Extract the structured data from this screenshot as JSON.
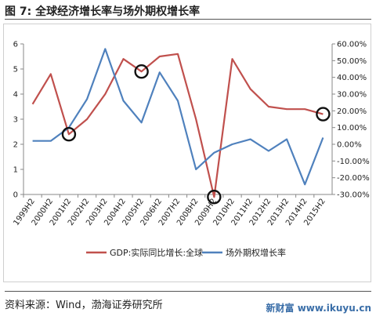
{
  "figure": {
    "title": "图 7:  全球经济增长率与场外期权增长率",
    "source": "资料来源：Wind，渤海证券研究所",
    "watermark": "新财富 www.ikuyu.cn"
  },
  "chart_data": {
    "type": "line",
    "categories": [
      "1999H2",
      "2000H2",
      "2001H2",
      "2002H2",
      "2003H2",
      "2004H2",
      "2005H2",
      "2006H2",
      "2007H2",
      "2008H2",
      "2009H2",
      "2010H2",
      "2011H2",
      "2012H2",
      "2013H2",
      "2014H2",
      "2015H2"
    ],
    "left_axis": {
      "ylim": [
        0,
        6
      ],
      "ticks": [
        "0",
        "1",
        "2",
        "3",
        "4",
        "5",
        "6"
      ]
    },
    "right_axis": {
      "ylim": [
        -0.3,
        0.6
      ],
      "ticks": [
        "-30.00%",
        "-20.00%",
        "-10.00%",
        "0.00%",
        "10.00%",
        "20.00%",
        "30.00%",
        "40.00%",
        "50.00%",
        "60.00%"
      ]
    },
    "series": [
      {
        "name": "GDP:实际同比增长:全球",
        "axis": "left",
        "color": "#c0504d",
        "values": [
          3.6,
          4.8,
          2.4,
          3.0,
          4.0,
          5.4,
          4.9,
          5.5,
          5.6,
          3.0,
          -0.1,
          5.4,
          4.2,
          3.5,
          3.4,
          3.4,
          3.2
        ]
      },
      {
        "name": "场外期权增长率",
        "axis": "right",
        "color": "#4f81bd",
        "values": [
          0.02,
          0.02,
          0.1,
          0.27,
          0.57,
          0.26,
          0.13,
          0.43,
          0.26,
          -0.15,
          -0.05,
          0.0,
          0.03,
          -0.04,
          0.03,
          -0.24,
          0.04
        ]
      }
    ],
    "highlights": [
      {
        "category": "2001H2",
        "value": 2.4
      },
      {
        "category": "2005H2",
        "value": 4.9
      },
      {
        "category": "2009H2",
        "value": -0.1
      },
      {
        "category": "2015H2",
        "value": 3.2
      }
    ],
    "grid": false,
    "legend_position": "bottom"
  }
}
